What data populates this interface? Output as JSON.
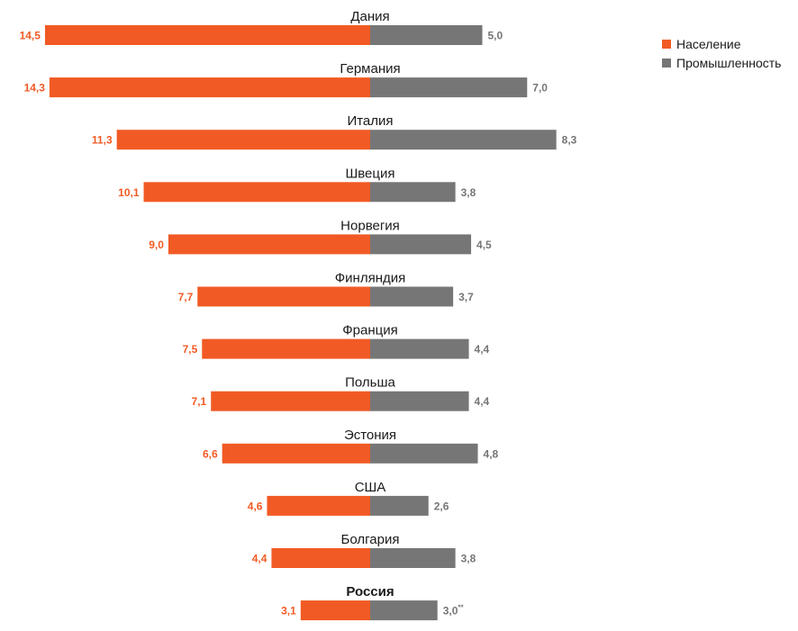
{
  "chart_data": {
    "type": "bar",
    "orientation": "horizontal-diverging",
    "title": "",
    "legend_position": "top-right",
    "series": [
      {
        "name": "Население",
        "color": "#F15A24"
      },
      {
        "name": "Промышленность",
        "color": "#767676"
      }
    ],
    "rows": [
      {
        "country": "Дания",
        "left": 14.5,
        "left_label": "14,5",
        "right": 5.0,
        "right_label": "5,0",
        "right_note": "",
        "bold": false
      },
      {
        "country": "Германия",
        "left": 14.3,
        "left_label": "14,3",
        "right": 7.0,
        "right_label": "7,0",
        "right_note": "",
        "bold": false
      },
      {
        "country": "Италия",
        "left": 11.3,
        "left_label": "11,3",
        "right": 8.3,
        "right_label": "8,3",
        "right_note": "",
        "bold": false
      },
      {
        "country": "Швеция",
        "left": 10.1,
        "left_label": "10,1",
        "right": 3.8,
        "right_label": "3,8",
        "right_note": "",
        "bold": false
      },
      {
        "country": "Норвегия",
        "left": 9.0,
        "left_label": "9,0",
        "right": 4.5,
        "right_label": "4,5",
        "right_note": "",
        "bold": false
      },
      {
        "country": "Финляндия",
        "left": 7.7,
        "left_label": "7,7",
        "right": 3.7,
        "right_label": "3,7",
        "right_note": "",
        "bold": false
      },
      {
        "country": "Франция",
        "left": 7.5,
        "left_label": "7,5",
        "right": 4.4,
        "right_label": "4,4",
        "right_note": "",
        "bold": false
      },
      {
        "country": "Польша",
        "left": 7.1,
        "left_label": "7,1",
        "right": 4.4,
        "right_label": "4,4",
        "right_note": "",
        "bold": false
      },
      {
        "country": "Эстония",
        "left": 6.6,
        "left_label": "6,6",
        "right": 4.8,
        "right_label": "4,8",
        "right_note": "",
        "bold": false
      },
      {
        "country": "США",
        "left": 4.6,
        "left_label": "4,6",
        "right": 2.6,
        "right_label": "2,6",
        "right_note": "",
        "bold": false
      },
      {
        "country": "Болгария",
        "left": 4.4,
        "left_label": "4,4",
        "right": 3.8,
        "right_label": "3,8",
        "right_note": "",
        "bold": false
      },
      {
        "country": "Россия",
        "left": 3.1,
        "left_label": "3,1",
        "right": 3.0,
        "right_label": "3,0",
        "right_note": "**",
        "bold": true
      }
    ]
  }
}
